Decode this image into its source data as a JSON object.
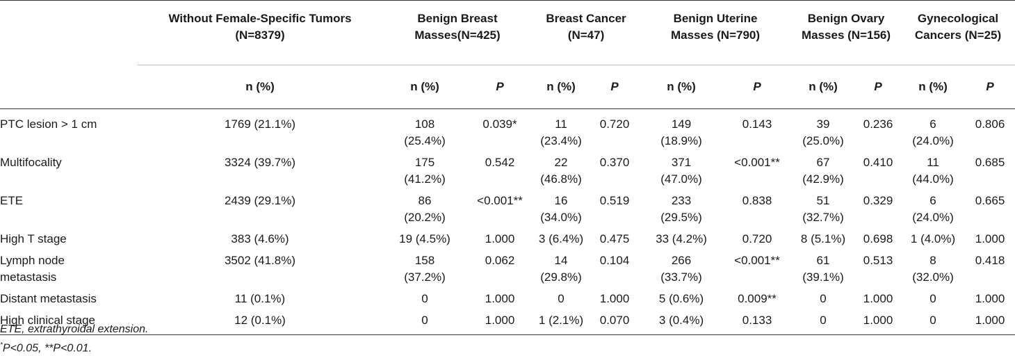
{
  "table": {
    "groups": [
      {
        "title_line1": "Without Female-Specific Tumors",
        "title_line2": "(N=8379)"
      },
      {
        "title_line1": "Benign Breast",
        "title_line2": "Masses(N=425)"
      },
      {
        "title_line1": "Breast Cancer",
        "title_line2": "(N=47)"
      },
      {
        "title_line1": "Benign Uterine",
        "title_line2": "Masses (N=790)"
      },
      {
        "title_line1": "Benign Ovary",
        "title_line2": "Masses (N=156)"
      },
      {
        "title_line1": "Gynecological",
        "title_line2": "Cancers (N=25)"
      }
    ],
    "sub_headers": {
      "n": "n (%)",
      "p": "P"
    },
    "rows": [
      {
        "label": "PTC lesion > 1 cm",
        "ref": "1769 (21.1%)",
        "cells": [
          [
            "108",
            "(25.4%)",
            "0.039*"
          ],
          [
            "11",
            "(23.4%)",
            "0.720"
          ],
          [
            "149",
            "(18.9%)",
            "0.143"
          ],
          [
            "39",
            "(25.0%)",
            "0.236"
          ],
          [
            "6",
            "(24.0%)",
            "0.806"
          ]
        ]
      },
      {
        "label": "Multifocality",
        "ref": "3324 (39.7%)",
        "cells": [
          [
            "175",
            "(41.2%)",
            "0.542"
          ],
          [
            "22",
            "(46.8%)",
            "0.370"
          ],
          [
            "371",
            "(47.0%)",
            "<0.001**"
          ],
          [
            "67",
            "(42.9%)",
            "0.410"
          ],
          [
            "11",
            "(44.0%)",
            "0.685"
          ]
        ]
      },
      {
        "label": "ETE",
        "ref": "2439 (29.1%)",
        "cells": [
          [
            "86",
            "(20.2%)",
            "<0.001**"
          ],
          [
            "16",
            "(34.0%)",
            "0.519"
          ],
          [
            "233",
            "(29.5%)",
            "0.838"
          ],
          [
            "51",
            "(32.7%)",
            "0.329"
          ],
          [
            "6",
            "(24.0%)",
            "0.665"
          ]
        ]
      },
      {
        "label": "High T stage",
        "ref": "383 (4.6%)",
        "cells": [
          [
            "19 (4.5%)",
            "",
            "1.000"
          ],
          [
            "3 (6.4%)",
            "",
            "0.475"
          ],
          [
            "33 (4.2%)",
            "",
            "0.720"
          ],
          [
            "8 (5.1%)",
            "",
            "0.698"
          ],
          [
            "1 (4.0%)",
            "",
            "1.000"
          ]
        ]
      },
      {
        "label": "Lymph node",
        "label2": "metastasis",
        "ref": "3502 (41.8%)",
        "cells": [
          [
            "158",
            "(37.2%)",
            "0.062"
          ],
          [
            "14",
            "(29.8%)",
            "0.104"
          ],
          [
            "266",
            "(33.7%)",
            "<0.001**"
          ],
          [
            "61",
            "(39.1%)",
            "0.513"
          ],
          [
            "8",
            "(32.0%)",
            "0.418"
          ]
        ]
      },
      {
        "label": "Distant metastasis",
        "ref": "11 (0.1%)",
        "cells": [
          [
            "0",
            "",
            "1.000"
          ],
          [
            "0",
            "",
            "1.000"
          ],
          [
            "5 (0.6%)",
            "",
            "0.009**"
          ],
          [
            "0",
            "",
            "1.000"
          ],
          [
            "0",
            "",
            "1.000"
          ]
        ]
      },
      {
        "label": "High clinical stage",
        "ref": "12 (0.1%)",
        "cells": [
          [
            "0",
            "",
            "1.000"
          ],
          [
            "1 (2.1%)",
            "",
            "0.070"
          ],
          [
            "3 (0.4%)",
            "",
            "0.133"
          ],
          [
            "0",
            "",
            "1.000"
          ],
          [
            "0",
            "",
            "1.000"
          ]
        ]
      }
    ]
  },
  "notes": {
    "abbrev": "ETE, extrathyroidal extension.",
    "sig1_p": "P",
    "sig1_rest": "<0.05, **",
    "sig2_p": "P",
    "sig2_rest": "<0.01."
  }
}
